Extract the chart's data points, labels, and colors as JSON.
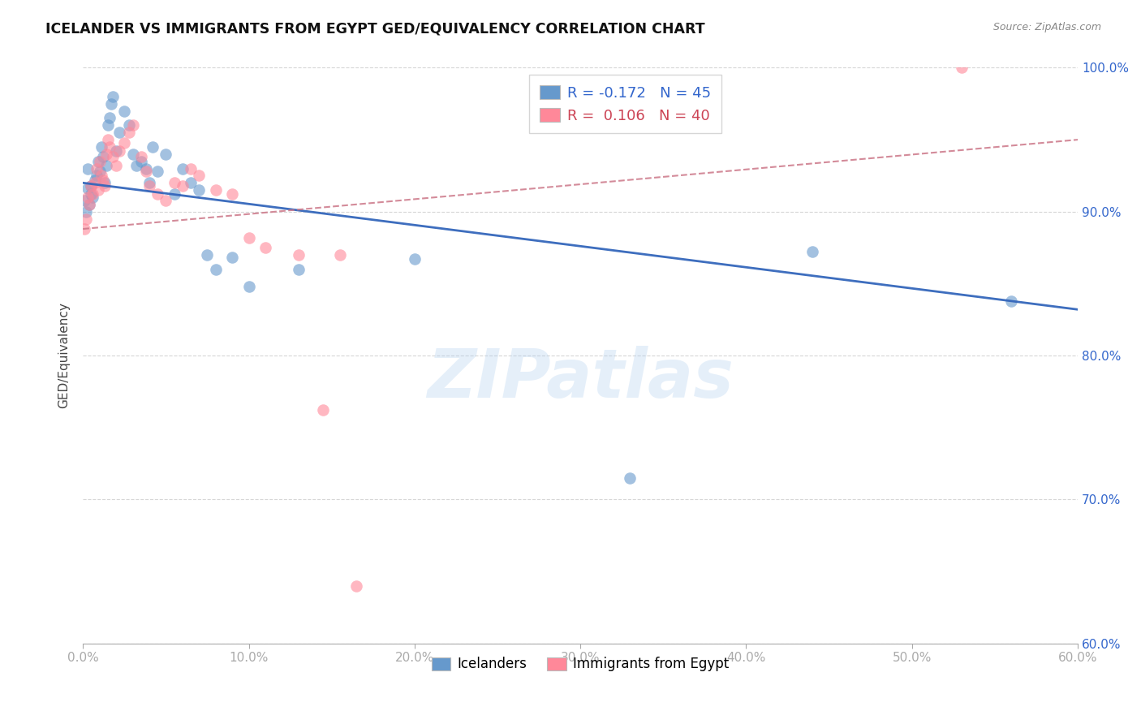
{
  "title": "ICELANDER VS IMMIGRANTS FROM EGYPT GED/EQUIVALENCY CORRELATION CHART",
  "source": "Source: ZipAtlas.com",
  "ylabel": "GED/Equivalency",
  "legend_label1": "Icelanders",
  "legend_label2": "Immigrants from Egypt",
  "R1": -0.172,
  "N1": 45,
  "R2": 0.106,
  "N2": 40,
  "xmin": 0.0,
  "xmax": 0.6,
  "ymin": 0.6,
  "ymax": 1.0,
  "watermark": "ZIPatlas",
  "color_blue": "#6699CC",
  "color_pink": "#FF8899",
  "color_blue_line": "#3366BB",
  "color_pink_line": "#CC7788",
  "blue_scatter_x": [
    0.001,
    0.002,
    0.003,
    0.003,
    0.004,
    0.005,
    0.005,
    0.006,
    0.007,
    0.008,
    0.009,
    0.01,
    0.011,
    0.012,
    0.013,
    0.014,
    0.015,
    0.016,
    0.017,
    0.018,
    0.02,
    0.022,
    0.025,
    0.028,
    0.03,
    0.032,
    0.035,
    0.038,
    0.04,
    0.042,
    0.045,
    0.05,
    0.055,
    0.06,
    0.065,
    0.07,
    0.075,
    0.08,
    0.09,
    0.1,
    0.13,
    0.2,
    0.33,
    0.44,
    0.56
  ],
  "blue_scatter_y": [
    0.908,
    0.9,
    0.916,
    0.93,
    0.905,
    0.912,
    0.918,
    0.91,
    0.922,
    0.925,
    0.935,
    0.928,
    0.945,
    0.938,
    0.92,
    0.932,
    0.96,
    0.965,
    0.975,
    0.98,
    0.942,
    0.955,
    0.97,
    0.96,
    0.94,
    0.932,
    0.935,
    0.93,
    0.92,
    0.945,
    0.928,
    0.94,
    0.912,
    0.93,
    0.92,
    0.915,
    0.87,
    0.86,
    0.868,
    0.848,
    0.86,
    0.867,
    0.715,
    0.872,
    0.838
  ],
  "pink_scatter_x": [
    0.001,
    0.002,
    0.003,
    0.004,
    0.005,
    0.006,
    0.007,
    0.008,
    0.009,
    0.01,
    0.011,
    0.012,
    0.013,
    0.014,
    0.015,
    0.016,
    0.018,
    0.02,
    0.022,
    0.025,
    0.028,
    0.03,
    0.035,
    0.038,
    0.04,
    0.045,
    0.05,
    0.055,
    0.06,
    0.065,
    0.07,
    0.08,
    0.09,
    0.1,
    0.11,
    0.13,
    0.145,
    0.155,
    0.165,
    0.53
  ],
  "pink_scatter_y": [
    0.888,
    0.895,
    0.91,
    0.905,
    0.918,
    0.912,
    0.92,
    0.93,
    0.915,
    0.935,
    0.925,
    0.922,
    0.918,
    0.94,
    0.95,
    0.945,
    0.938,
    0.932,
    0.942,
    0.948,
    0.955,
    0.96,
    0.938,
    0.928,
    0.918,
    0.912,
    0.908,
    0.92,
    0.918,
    0.93,
    0.925,
    0.915,
    0.912,
    0.882,
    0.875,
    0.87,
    0.762,
    0.87,
    0.64,
    1.0
  ],
  "blue_line_x": [
    0.0,
    0.6
  ],
  "blue_line_y": [
    0.92,
    0.832
  ],
  "pink_line_x": [
    0.0,
    0.6
  ],
  "pink_line_y": [
    0.888,
    0.95
  ],
  "xticks": [
    0.0,
    0.1,
    0.2,
    0.3,
    0.4,
    0.5,
    0.6
  ],
  "xtick_labels": [
    "0.0%",
    "10.0%",
    "20.0%",
    "30.0%",
    "40.0%",
    "50.0%",
    "60.0%"
  ],
  "yticks": [
    0.6,
    0.7,
    0.8,
    0.9,
    1.0
  ],
  "ytick_labels": [
    "60.0%",
    "70.0%",
    "80.0%",
    "90.0%",
    "100.0%"
  ]
}
